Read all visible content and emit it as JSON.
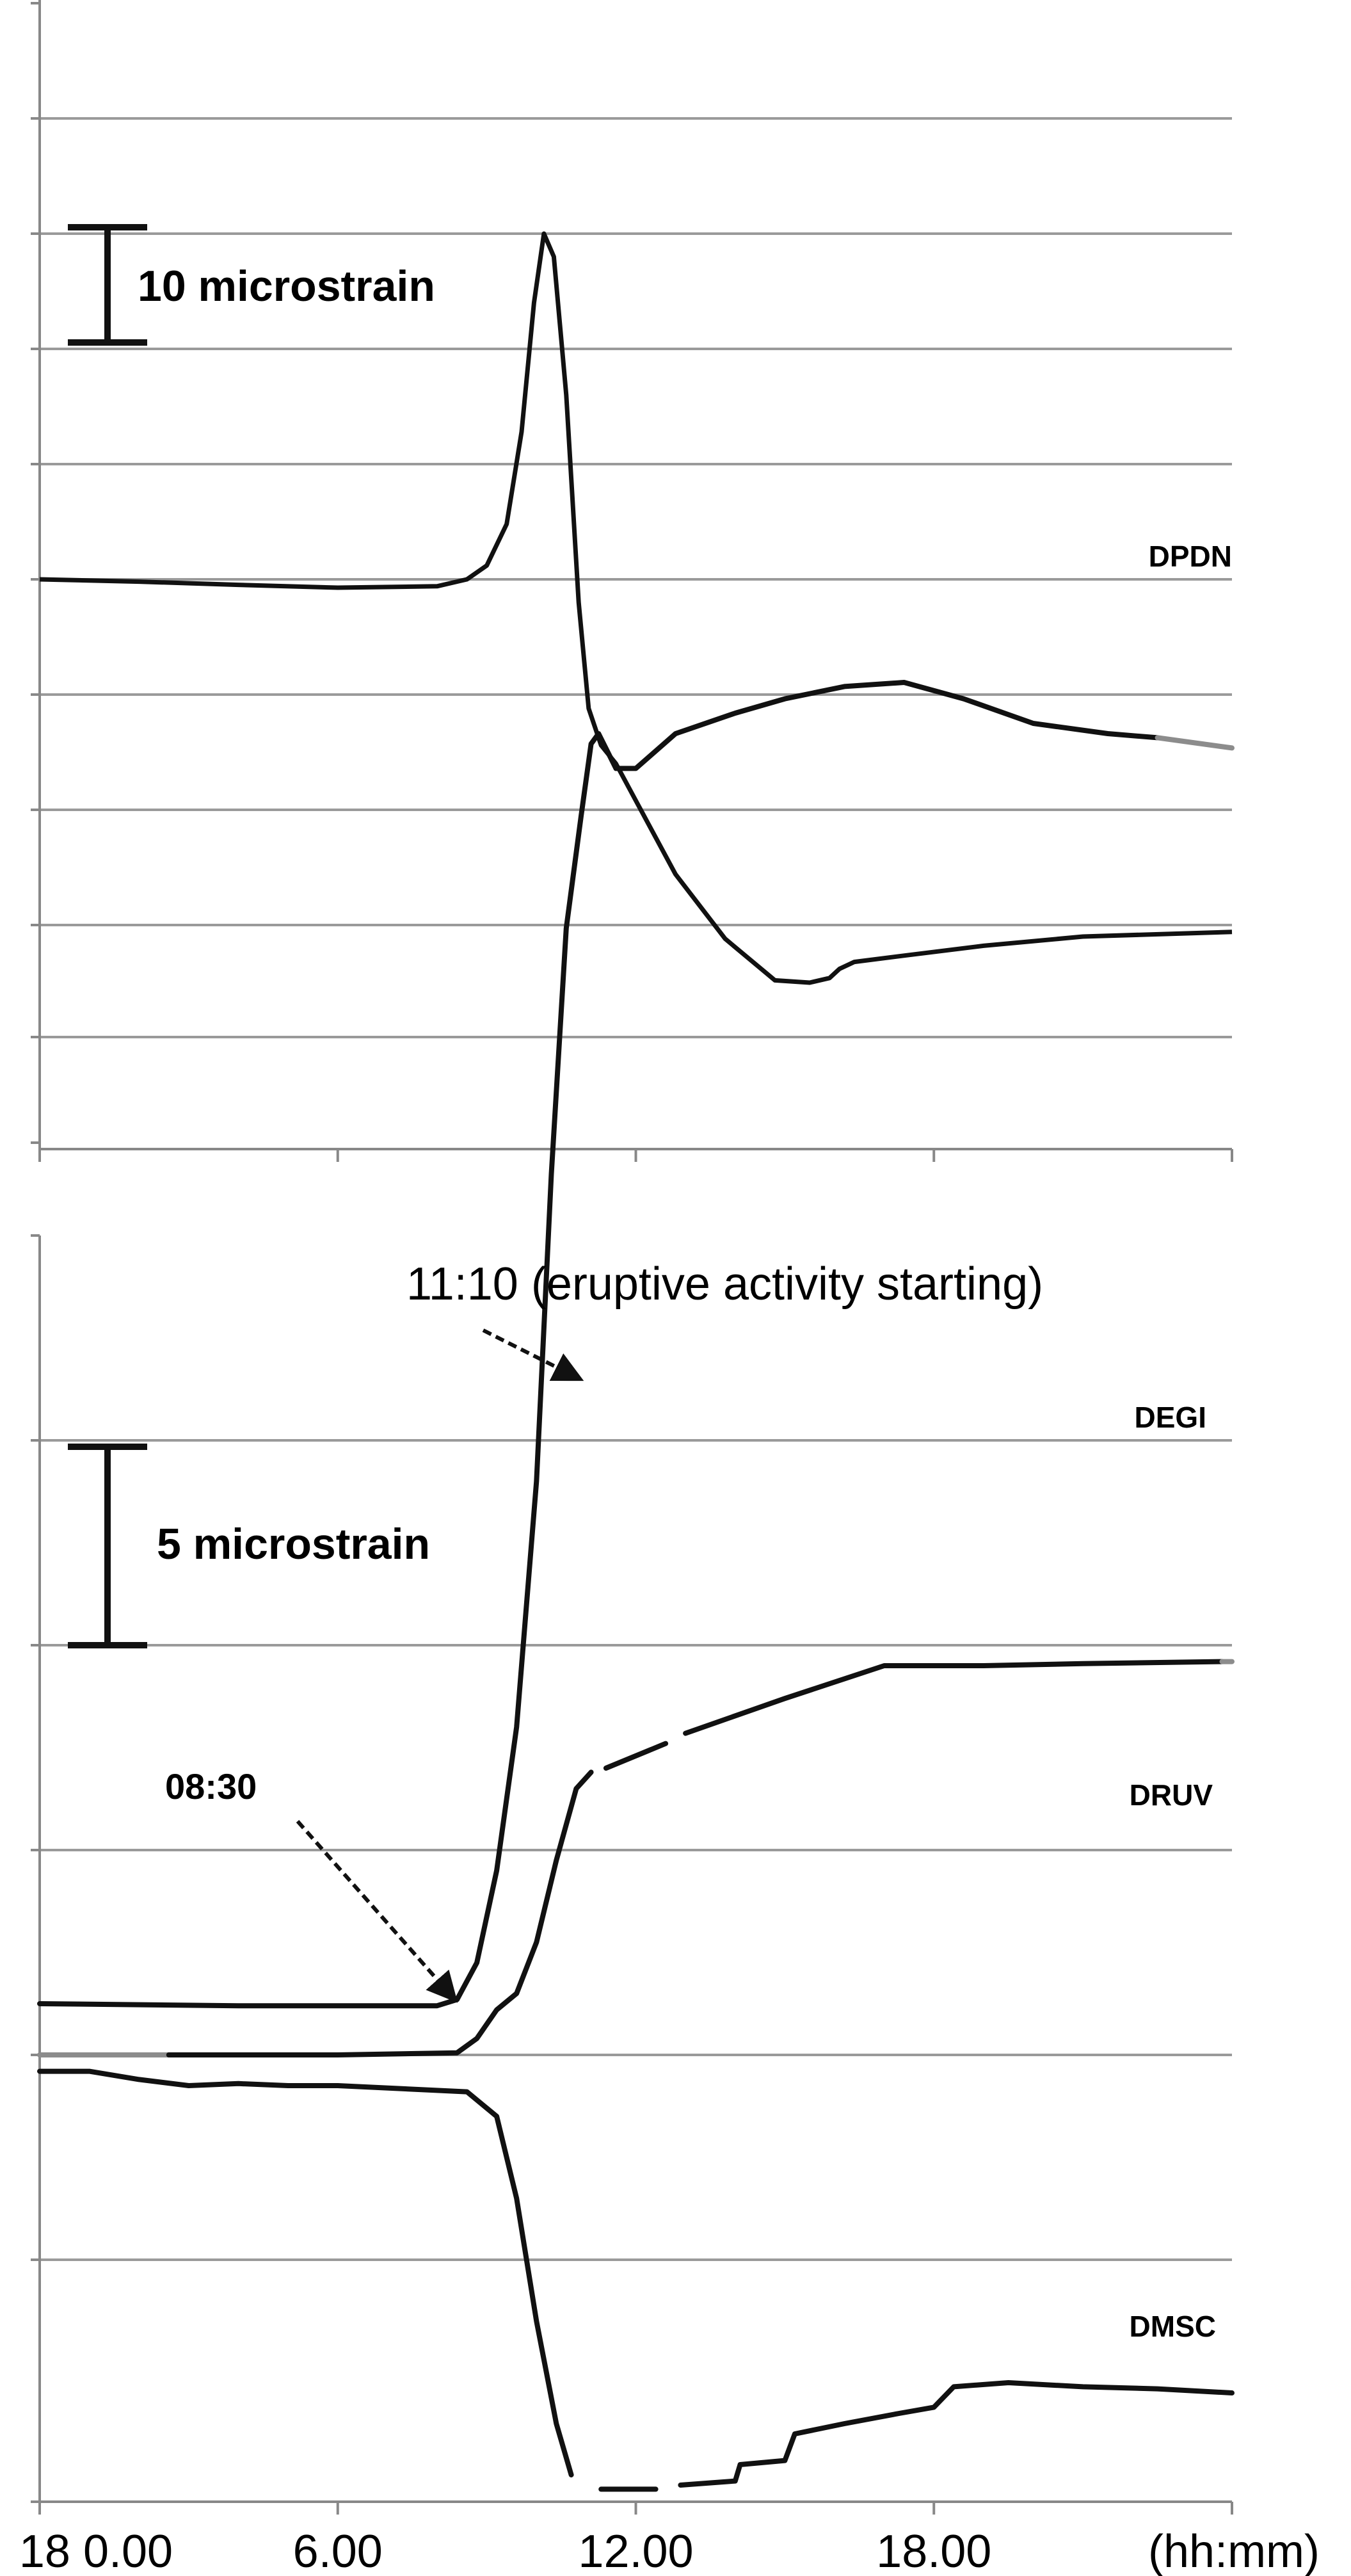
{
  "colors": {
    "line": "#111111",
    "grid": "#9a9a9a",
    "axis": "#888888",
    "gap": "#8c8c8c"
  },
  "chart_data": [
    {
      "type": "line",
      "panel": "top",
      "x_unit": "hours since 18 0.00",
      "xlim": [
        0,
        24
      ],
      "ylim": [
        -14,
        10
      ],
      "grid_step": 2.5,
      "scale_bar": {
        "label": "10 microstrain",
        "from": 5.0,
        "to": 7.5
      },
      "series": [
        {
          "name": "DPDN",
          "points": [
            [
              0,
              0
            ],
            [
              2,
              -0.05
            ],
            [
              4,
              -0.12
            ],
            [
              6,
              -0.18
            ],
            [
              8,
              -0.15
            ],
            [
              8.6,
              0
            ],
            [
              9.0,
              0.3
            ],
            [
              9.4,
              1.2
            ],
            [
              9.7,
              3.2
            ],
            [
              9.95,
              6.0
            ],
            [
              10.15,
              7.5
            ],
            [
              10.35,
              7.0
            ],
            [
              10.6,
              4.0
            ],
            [
              10.85,
              -0.5
            ],
            [
              11.05,
              -2.8
            ],
            [
              11.3,
              -3.6
            ],
            [
              11.6,
              -4.0
            ],
            [
              12.0,
              -4.8
            ],
            [
              12.8,
              -6.4
            ],
            [
              13.8,
              -7.8
            ],
            [
              14.8,
              -8.7
            ],
            [
              15.5,
              -8.75
            ],
            [
              15.9,
              -8.65
            ],
            [
              16.1,
              -8.45
            ],
            [
              16.4,
              -8.3
            ],
            [
              17.5,
              -8.15
            ],
            [
              19,
              -7.95
            ],
            [
              21,
              -7.75
            ],
            [
              24,
              -7.65
            ]
          ]
        }
      ]
    },
    {
      "type": "line",
      "panel": "bottom",
      "x_unit": "hours since 18 0.00",
      "xlim": [
        0,
        24
      ],
      "ylim": [
        -3.5,
        9.0
      ],
      "grid_step": 1.0,
      "x_ticks": [
        "18 0.00",
        "6.00",
        "12.00",
        "18.00"
      ],
      "x_unit_label": "(hh:mm)",
      "scale_bar": {
        "label": "5 microstrain",
        "from": 5.0,
        "to": 6.0
      },
      "annotations": [
        {
          "text": "08:30",
          "x": 8.5
        },
        {
          "text": "11:10 (eruptive activity starting)",
          "x": 11.17
        }
      ],
      "series": [
        {
          "name": "DEGI",
          "segments": [
            [
              [
                0,
                0.25
              ],
              [
                4,
                0.24
              ],
              [
                8,
                0.24
              ],
              [
                8.4,
                0.27
              ],
              [
                8.8,
                0.45
              ],
              [
                9.2,
                0.9
              ],
              [
                9.6,
                1.6
              ],
              [
                10.0,
                2.8
              ],
              [
                10.3,
                4.3
              ],
              [
                10.6,
                5.5
              ],
              [
                10.9,
                6.05
              ],
              [
                11.1,
                6.4
              ],
              [
                11.25,
                6.45
              ],
              [
                11.6,
                6.28
              ],
              [
                12.0,
                6.28
              ],
              [
                12.8,
                6.45
              ],
              [
                14,
                6.55
              ],
              [
                15,
                6.62
              ],
              [
                16.2,
                6.68
              ],
              [
                17.4,
                6.7
              ],
              [
                18.6,
                6.62
              ],
              [
                20,
                6.5
              ],
              [
                21.5,
                6.45
              ],
              [
                22.5,
                6.43
              ]
            ],
            [
              [
                22.5,
                6.43
              ],
              [
                24,
                6.38
              ]
            ]
          ],
          "gap_segment_index": 1
        },
        {
          "name": "DRUV",
          "segments": [
            [
              [
                0,
                0.0
              ],
              [
                2.6,
                0.0
              ]
            ],
            [
              [
                2.6,
                0.0
              ],
              [
                6,
                0.0
              ],
              [
                8.4,
                0.01
              ],
              [
                8.8,
                0.08
              ],
              [
                9.2,
                0.22
              ],
              [
                9.6,
                0.3
              ],
              [
                10.0,
                0.55
              ],
              [
                10.4,
                0.95
              ],
              [
                10.8,
                1.3
              ],
              [
                11.1,
                1.38
              ]
            ],
            [
              [
                11.4,
                1.4
              ],
              [
                12.6,
                1.52
              ]
            ],
            [
              [
                13.0,
                1.57
              ],
              [
                15,
                1.74
              ],
              [
                17,
                1.9
              ],
              [
                19,
                1.9
              ],
              [
                21,
                1.91
              ],
              [
                23.8,
                1.92
              ]
            ],
            [
              [
                23.8,
                1.92
              ],
              [
                24,
                1.92
              ]
            ]
          ],
          "gap_segment_indices": [
            0,
            4
          ]
        },
        {
          "name": "DMSC",
          "segments": [
            [
              [
                0,
                -0.08
              ],
              [
                1,
                -0.08
              ],
              [
                2,
                -0.12
              ],
              [
                3,
                -0.15
              ],
              [
                4,
                -0.14
              ],
              [
                5,
                -0.15
              ],
              [
                6,
                -0.15
              ],
              [
                8.6,
                -0.18
              ],
              [
                9.2,
                -0.3
              ],
              [
                9.6,
                -0.7
              ],
              [
                10.0,
                -1.3
              ],
              [
                10.4,
                -1.8
              ],
              [
                10.7,
                -2.05
              ]
            ],
            [
              [
                11.3,
                -2.12
              ],
              [
                12.4,
                -2.12
              ]
            ],
            [
              [
                12.9,
                -2.1
              ],
              [
                14.0,
                -2.08
              ],
              [
                14.1,
                -2.0
              ],
              [
                15.0,
                -1.98
              ],
              [
                15.2,
                -1.85
              ],
              [
                16.2,
                -1.8
              ],
              [
                17.3,
                -1.75
              ],
              [
                18.0,
                -1.72
              ],
              [
                18.4,
                -1.62
              ],
              [
                19.5,
                -1.6
              ],
              [
                21,
                -1.62
              ],
              [
                22.5,
                -1.63
              ],
              [
                24,
                -1.65
              ]
            ]
          ]
        }
      ]
    }
  ]
}
